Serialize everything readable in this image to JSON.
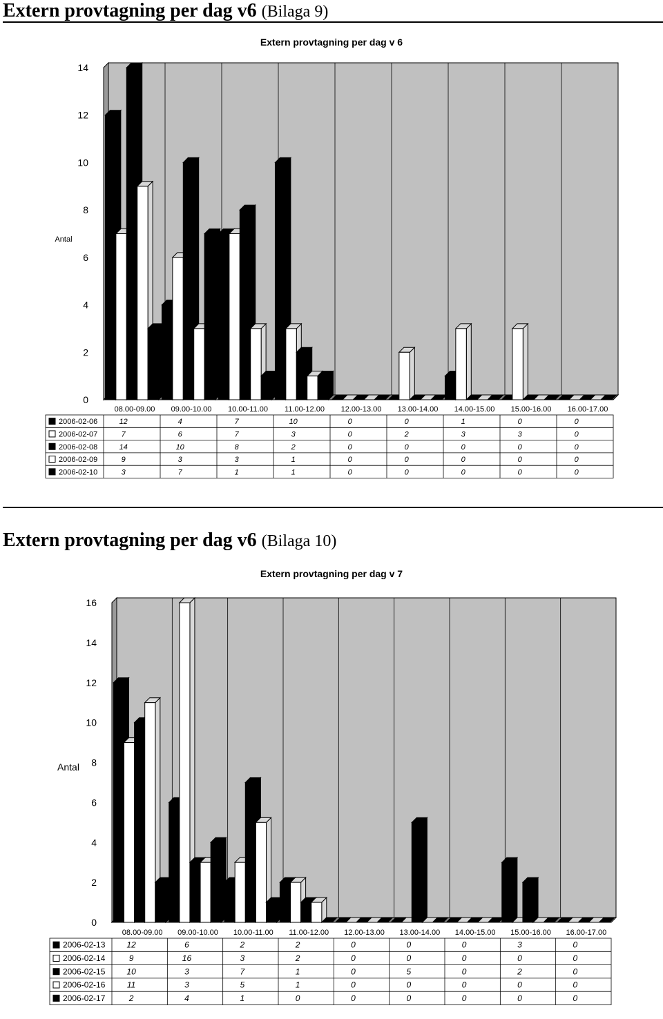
{
  "sections": [
    {
      "heading_main": "Extern provtagning per dag v6",
      "heading_sub": "(Bilaga 9)"
    },
    {
      "heading_main": "Extern provtagning per dag v6",
      "heading_sub": "(Bilaga 10)"
    }
  ],
  "chart_data": [
    {
      "type": "bar",
      "title": "Extern provtagning per dag v 6",
      "ylabel": "Antal",
      "xlabel": "",
      "ylim": [
        0,
        14
      ],
      "yticks": [
        0,
        2,
        4,
        6,
        8,
        10,
        12,
        14
      ],
      "grid": true,
      "legend": "table-below",
      "categories": [
        "08.00-09.00",
        "09.00-10.00",
        "10.00-11.00",
        "11.00-12.00",
        "12.00-13.00",
        "13.00-14.00",
        "14.00-15.00",
        "15.00-16.00",
        "16.00-17.00"
      ],
      "series": [
        {
          "name": "2006-02-06",
          "color": "#000000",
          "values": [
            12,
            4,
            7,
            10,
            0,
            0,
            1,
            0,
            0
          ]
        },
        {
          "name": "2006-02-07",
          "color": "#ffffff",
          "values": [
            7,
            6,
            7,
            3,
            0,
            2,
            3,
            3,
            0
          ]
        },
        {
          "name": "2006-02-08",
          "color": "#000000",
          "values": [
            14,
            10,
            8,
            2,
            0,
            0,
            0,
            0,
            0
          ]
        },
        {
          "name": "2006-02-09",
          "color": "#ffffff",
          "values": [
            9,
            3,
            3,
            1,
            0,
            0,
            0,
            0,
            0
          ]
        },
        {
          "name": "2006-02-10",
          "color": "#000000",
          "values": [
            3,
            7,
            1,
            1,
            0,
            0,
            0,
            0,
            0
          ]
        }
      ]
    },
    {
      "type": "bar",
      "title": "Extern provtagning per dag v 7",
      "ylabel": "Antal",
      "xlabel": "",
      "ylim": [
        0,
        16
      ],
      "yticks": [
        0,
        2,
        4,
        6,
        8,
        10,
        12,
        14,
        16
      ],
      "grid": true,
      "legend": "table-below",
      "categories": [
        "08.00-09.00",
        "09.00-10.00",
        "10.00-11.00",
        "11.00-12.00",
        "12.00-13.00",
        "13.00-14.00",
        "14.00-15.00",
        "15.00-16.00",
        "16.00-17.00"
      ],
      "series": [
        {
          "name": "2006-02-13",
          "color": "#000000",
          "values": [
            12,
            6,
            2,
            2,
            0,
            0,
            0,
            3,
            0
          ]
        },
        {
          "name": "2006-02-14",
          "color": "#ffffff",
          "values": [
            9,
            16,
            3,
            2,
            0,
            0,
            0,
            0,
            0
          ]
        },
        {
          "name": "2006-02-15",
          "color": "#000000",
          "values": [
            10,
            3,
            7,
            1,
            0,
            5,
            0,
            2,
            0
          ]
        },
        {
          "name": "2006-02-16",
          "color": "#ffffff",
          "values": [
            11,
            3,
            5,
            1,
            0,
            0,
            0,
            0,
            0
          ]
        },
        {
          "name": "2006-02-17",
          "color": "#000000",
          "values": [
            2,
            4,
            1,
            0,
            0,
            0,
            0,
            0,
            0
          ]
        }
      ]
    }
  ]
}
